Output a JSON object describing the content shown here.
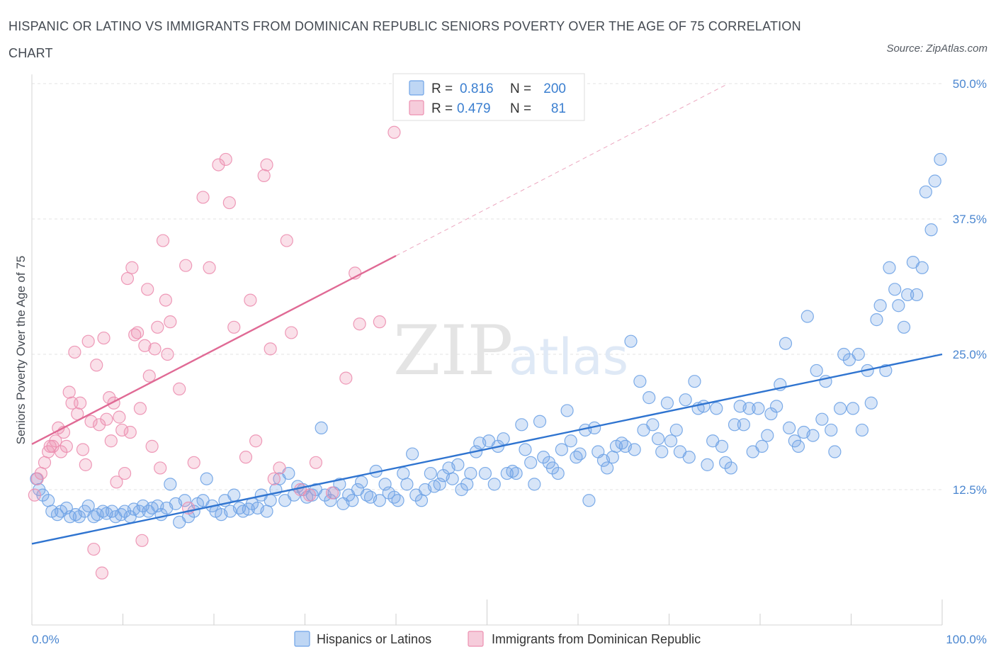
{
  "title": "HISPANIC OR LATINO VS IMMIGRANTS FROM DOMINICAN REPUBLIC SENIORS POVERTY OVER THE AGE OF 75 CORRELATION CHART",
  "source": "Source: ZipAtlas.com",
  "watermark": {
    "zip": "ZIP",
    "atlas": "atlas"
  },
  "legend": {
    "r_label": "R =",
    "n_label": "N =",
    "entries": [
      {
        "r": "0.816",
        "n": "200",
        "color": "#6fa3e6"
      },
      {
        "r": "0.479",
        "n": "81",
        "color": "#ec8fb0"
      }
    ]
  },
  "chart_data": {
    "type": "scatter",
    "xlabel": "",
    "ylabel": "Seniors Poverty Over the Age of 75",
    "xlim": [
      0,
      100
    ],
    "ylim": [
      0,
      50
    ],
    "x_tick_labels": {
      "min": "0.0%",
      "max": "100.0%"
    },
    "y_ticks": [
      {
        "value": 12.5,
        "label": "12.5%"
      },
      {
        "value": 25.0,
        "label": "25.0%"
      },
      {
        "value": 37.5,
        "label": "37.5%"
      },
      {
        "value": 50.0,
        "label": "50.0%"
      }
    ],
    "grid": true,
    "legend_position": "bottom",
    "series": [
      {
        "name": "Hispanics or Latinos",
        "color": "#6fa3e6",
        "line_color": "#2f74d0",
        "trend": {
          "x0": 0,
          "y0": 7.5,
          "x1": 100,
          "y1": 25.0,
          "dashed_to": null
        },
        "points": [
          [
            0.5,
            13.5
          ],
          [
            0.8,
            12.5
          ],
          [
            1.2,
            12.0
          ],
          [
            1.8,
            11.5
          ],
          [
            2.2,
            10.5
          ],
          [
            2.8,
            10.2
          ],
          [
            3.2,
            10.5
          ],
          [
            3.8,
            10.8
          ],
          [
            4.2,
            10.0
          ],
          [
            4.8,
            10.2
          ],
          [
            5.2,
            10.0
          ],
          [
            5.8,
            10.5
          ],
          [
            6.2,
            11.0
          ],
          [
            6.8,
            10.0
          ],
          [
            7.2,
            10.2
          ],
          [
            7.8,
            10.5
          ],
          [
            8.2,
            10.3
          ],
          [
            8.8,
            10.5
          ],
          [
            9.2,
            10.0
          ],
          [
            9.8,
            10.2
          ],
          [
            10.2,
            10.5
          ],
          [
            10.8,
            10.0
          ],
          [
            11.2,
            10.7
          ],
          [
            11.8,
            10.5
          ],
          [
            12.2,
            11.0
          ],
          [
            12.8,
            10.5
          ],
          [
            13.2,
            10.8
          ],
          [
            13.8,
            11.0
          ],
          [
            14.2,
            10.2
          ],
          [
            14.8,
            10.8
          ],
          [
            15.2,
            13.0
          ],
          [
            15.8,
            11.2
          ],
          [
            16.2,
            9.5
          ],
          [
            16.8,
            11.5
          ],
          [
            17.2,
            10.0
          ],
          [
            17.8,
            10.5
          ],
          [
            18.2,
            11.2
          ],
          [
            18.8,
            11.5
          ],
          [
            19.2,
            13.5
          ],
          [
            19.8,
            11.0
          ],
          [
            20.2,
            10.5
          ],
          [
            20.8,
            10.2
          ],
          [
            21.2,
            11.5
          ],
          [
            21.8,
            10.5
          ],
          [
            22.2,
            12.0
          ],
          [
            22.8,
            10.8
          ],
          [
            23.2,
            10.5
          ],
          [
            23.8,
            10.7
          ],
          [
            24.2,
            11.2
          ],
          [
            24.8,
            10.8
          ],
          [
            25.2,
            12.0
          ],
          [
            25.8,
            10.5
          ],
          [
            26.2,
            11.5
          ],
          [
            26.8,
            12.5
          ],
          [
            27.2,
            13.5
          ],
          [
            27.8,
            11.5
          ],
          [
            28.2,
            14.0
          ],
          [
            28.8,
            12.0
          ],
          [
            29.2,
            12.8
          ],
          [
            29.8,
            12.5
          ],
          [
            30.2,
            11.8
          ],
          [
            30.8,
            12.0
          ],
          [
            31.2,
            12.5
          ],
          [
            31.8,
            18.2
          ],
          [
            32.2,
            12.0
          ],
          [
            32.8,
            11.5
          ],
          [
            33.2,
            12.2
          ],
          [
            33.8,
            13.0
          ],
          [
            34.2,
            11.2
          ],
          [
            34.8,
            12.0
          ],
          [
            35.2,
            11.5
          ],
          [
            35.8,
            12.5
          ],
          [
            36.2,
            13.2
          ],
          [
            36.8,
            12.0
          ],
          [
            37.2,
            11.8
          ],
          [
            37.8,
            14.2
          ],
          [
            38.2,
            11.5
          ],
          [
            38.8,
            13.0
          ],
          [
            39.2,
            12.2
          ],
          [
            39.8,
            11.8
          ],
          [
            40.2,
            11.5
          ],
          [
            40.8,
            14.0
          ],
          [
            41.2,
            13.0
          ],
          [
            41.8,
            15.8
          ],
          [
            42.2,
            12.0
          ],
          [
            42.8,
            11.5
          ],
          [
            43.2,
            12.5
          ],
          [
            43.8,
            14.0
          ],
          [
            44.2,
            12.8
          ],
          [
            44.8,
            13.0
          ],
          [
            45.2,
            13.8
          ],
          [
            45.8,
            14.5
          ],
          [
            46.2,
            13.5
          ],
          [
            46.8,
            14.8
          ],
          [
            47.2,
            12.5
          ],
          [
            47.8,
            13.0
          ],
          [
            48.2,
            14.0
          ],
          [
            48.8,
            16.0
          ],
          [
            49.2,
            16.8
          ],
          [
            49.8,
            14.0
          ],
          [
            50.2,
            17.0
          ],
          [
            50.8,
            13.0
          ],
          [
            51.2,
            16.5
          ],
          [
            51.8,
            17.2
          ],
          [
            52.2,
            14.0
          ],
          [
            52.8,
            14.2
          ],
          [
            53.2,
            14.0
          ],
          [
            53.8,
            18.5
          ],
          [
            54.2,
            16.2
          ],
          [
            54.8,
            15.0
          ],
          [
            55.2,
            13.0
          ],
          [
            55.8,
            18.8
          ],
          [
            56.2,
            15.5
          ],
          [
            56.8,
            15.0
          ],
          [
            57.2,
            14.5
          ],
          [
            57.8,
            14.0
          ],
          [
            58.2,
            16.2
          ],
          [
            58.8,
            19.8
          ],
          [
            59.2,
            17.0
          ],
          [
            59.8,
            15.5
          ],
          [
            60.2,
            15.8
          ],
          [
            60.8,
            18.0
          ],
          [
            61.2,
            11.5
          ],
          [
            61.8,
            18.2
          ],
          [
            62.2,
            16.0
          ],
          [
            62.8,
            15.2
          ],
          [
            63.2,
            14.5
          ],
          [
            63.8,
            15.5
          ],
          [
            64.2,
            16.5
          ],
          [
            64.8,
            16.8
          ],
          [
            65.2,
            16.5
          ],
          [
            65.8,
            26.2
          ],
          [
            66.2,
            16.2
          ],
          [
            66.8,
            22.5
          ],
          [
            67.2,
            18.0
          ],
          [
            67.8,
            21.0
          ],
          [
            68.2,
            18.5
          ],
          [
            68.8,
            17.2
          ],
          [
            69.2,
            16.0
          ],
          [
            69.8,
            20.5
          ],
          [
            70.2,
            17.0
          ],
          [
            70.8,
            18.0
          ],
          [
            71.2,
            16.0
          ],
          [
            71.8,
            20.8
          ],
          [
            72.2,
            15.5
          ],
          [
            72.8,
            22.5
          ],
          [
            73.2,
            20.0
          ],
          [
            73.8,
            20.2
          ],
          [
            74.2,
            14.8
          ],
          [
            74.8,
            17.0
          ],
          [
            75.2,
            20.0
          ],
          [
            75.8,
            16.5
          ],
          [
            76.2,
            15.0
          ],
          [
            76.8,
            14.5
          ],
          [
            77.2,
            18.5
          ],
          [
            77.8,
            20.2
          ],
          [
            78.2,
            18.5
          ],
          [
            78.8,
            20.0
          ],
          [
            79.2,
            16.0
          ],
          [
            79.8,
            20.0
          ],
          [
            80.2,
            16.5
          ],
          [
            80.8,
            17.5
          ],
          [
            81.2,
            19.5
          ],
          [
            81.8,
            20.2
          ],
          [
            82.2,
            22.2
          ],
          [
            82.8,
            26.0
          ],
          [
            83.2,
            18.2
          ],
          [
            83.8,
            17.0
          ],
          [
            84.2,
            16.5
          ],
          [
            84.8,
            17.8
          ],
          [
            85.2,
            28.5
          ],
          [
            85.8,
            17.5
          ],
          [
            86.2,
            23.5
          ],
          [
            86.8,
            19.0
          ],
          [
            87.2,
            22.5
          ],
          [
            87.8,
            18.0
          ],
          [
            88.2,
            16.0
          ],
          [
            88.8,
            20.0
          ],
          [
            89.2,
            25.0
          ],
          [
            89.8,
            24.5
          ],
          [
            90.2,
            20.0
          ],
          [
            90.8,
            25.0
          ],
          [
            91.2,
            18.0
          ],
          [
            91.8,
            23.5
          ],
          [
            92.2,
            20.5
          ],
          [
            92.8,
            28.2
          ],
          [
            93.2,
            29.5
          ],
          [
            93.8,
            23.5
          ],
          [
            94.2,
            33.0
          ],
          [
            94.8,
            31.0
          ],
          [
            95.2,
            29.5
          ],
          [
            95.8,
            27.5
          ],
          [
            96.2,
            30.5
          ],
          [
            96.8,
            33.5
          ],
          [
            97.2,
            30.5
          ],
          [
            97.8,
            33.0
          ],
          [
            98.2,
            40.0
          ],
          [
            98.8,
            36.5
          ],
          [
            99.2,
            41.0
          ],
          [
            99.8,
            43.0
          ]
        ]
      },
      {
        "name": "Immigrants from Dominican Republic",
        "color": "#ec8fb0",
        "line_color": "#e06a95",
        "trend": {
          "x0": 0,
          "y0": 16.7,
          "x1": 40,
          "y1": 34.1,
          "dashed_to": {
            "x": 76.5,
            "y": 50.0
          }
        },
        "points": [
          [
            0.3,
            12.0
          ],
          [
            0.6,
            13.5
          ],
          [
            1.0,
            14.0
          ],
          [
            1.4,
            15.0
          ],
          [
            1.8,
            16.0
          ],
          [
            2.0,
            16.5
          ],
          [
            2.3,
            16.5
          ],
          [
            2.6,
            17.0
          ],
          [
            2.9,
            18.2
          ],
          [
            3.2,
            16.0
          ],
          [
            3.5,
            17.8
          ],
          [
            3.8,
            16.5
          ],
          [
            4.1,
            21.5
          ],
          [
            4.4,
            20.5
          ],
          [
            4.7,
            25.2
          ],
          [
            5.0,
            19.5
          ],
          [
            5.3,
            20.5
          ],
          [
            5.6,
            16.2
          ],
          [
            5.9,
            14.8
          ],
          [
            6.2,
            26.2
          ],
          [
            6.5,
            18.8
          ],
          [
            6.8,
            7.0
          ],
          [
            7.1,
            24.0
          ],
          [
            7.4,
            18.5
          ],
          [
            7.7,
            4.8
          ],
          [
            7.9,
            26.5
          ],
          [
            8.2,
            19.0
          ],
          [
            8.5,
            21.0
          ],
          [
            8.7,
            17.0
          ],
          [
            9.0,
            20.5
          ],
          [
            9.3,
            13.2
          ],
          [
            9.6,
            19.2
          ],
          [
            9.9,
            18.0
          ],
          [
            10.2,
            14.0
          ],
          [
            10.5,
            32.0
          ],
          [
            10.8,
            17.8
          ],
          [
            11.0,
            33.0
          ],
          [
            11.3,
            26.8
          ],
          [
            11.6,
            27.0
          ],
          [
            11.9,
            20.0
          ],
          [
            12.1,
            7.8
          ],
          [
            12.4,
            25.8
          ],
          [
            12.7,
            31.0
          ],
          [
            12.9,
            23.0
          ],
          [
            13.2,
            16.5
          ],
          [
            13.5,
            25.5
          ],
          [
            13.8,
            27.5
          ],
          [
            14.1,
            14.5
          ],
          [
            14.4,
            35.5
          ],
          [
            14.7,
            30.0
          ],
          [
            14.9,
            25.0
          ],
          [
            15.2,
            28.0
          ],
          [
            16.2,
            21.8
          ],
          [
            16.9,
            33.2
          ],
          [
            17.2,
            10.8
          ],
          [
            17.8,
            15.0
          ],
          [
            18.8,
            39.5
          ],
          [
            19.5,
            33.0
          ],
          [
            20.5,
            42.5
          ],
          [
            21.3,
            43.0
          ],
          [
            21.7,
            39.0
          ],
          [
            22.2,
            27.5
          ],
          [
            23.5,
            15.5
          ],
          [
            24.6,
            17.0
          ],
          [
            25.5,
            41.5
          ],
          [
            25.8,
            42.5
          ],
          [
            26.2,
            25.5
          ],
          [
            26.6,
            13.5
          ],
          [
            27.2,
            14.5
          ],
          [
            28.0,
            35.5
          ],
          [
            28.5,
            27.0
          ],
          [
            30.5,
            12.0
          ],
          [
            31.2,
            15.0
          ],
          [
            33.0,
            12.2
          ],
          [
            34.5,
            22.8
          ],
          [
            35.5,
            32.5
          ],
          [
            36.0,
            27.8
          ],
          [
            38.2,
            28.0
          ],
          [
            39.8,
            45.5
          ],
          [
            24.0,
            30.0
          ],
          [
            29.5,
            12.5
          ]
        ]
      }
    ]
  }
}
